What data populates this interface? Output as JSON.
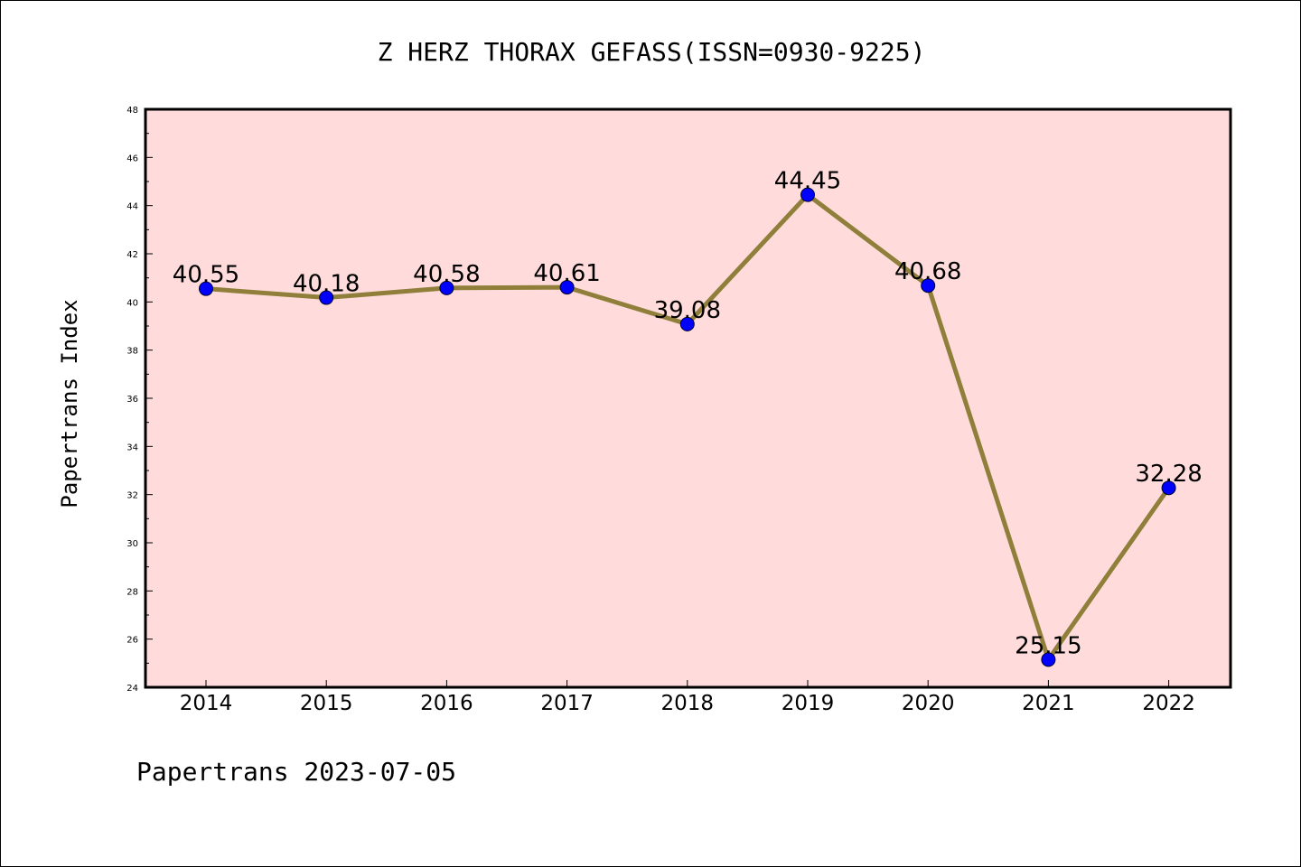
{
  "chart_data": {
    "type": "line",
    "title": "Z HERZ THORAX GEFASS(ISSN=0930-9225)",
    "xlabel": "",
    "ylabel": "Papertrans Index",
    "categories": [
      "2014",
      "2015",
      "2016",
      "2017",
      "2018",
      "2019",
      "2020",
      "2021",
      "2022"
    ],
    "series": [
      {
        "values": [
          40.55,
          40.18,
          40.58,
          40.61,
          39.08,
          44.45,
          40.68,
          25.15,
          32.28
        ],
        "labels": [
          "40.55",
          "40.18",
          "40.58",
          "40.61",
          "39.08",
          "44.45",
          "40.68",
          "25.15",
          "32.28"
        ],
        "line_color": "#8f7f3a",
        "marker_color": "#0000ff"
      }
    ],
    "ylim": [
      24,
      48
    ],
    "yticks": [
      "24",
      "26",
      "28",
      "30",
      "32",
      "34",
      "36",
      "38",
      "40",
      "42",
      "44",
      "46",
      "48"
    ],
    "plot_background": "#ffdcdb",
    "grid": false,
    "legend": "none"
  },
  "footer": {
    "text": "Papertrans 2023-07-05"
  }
}
